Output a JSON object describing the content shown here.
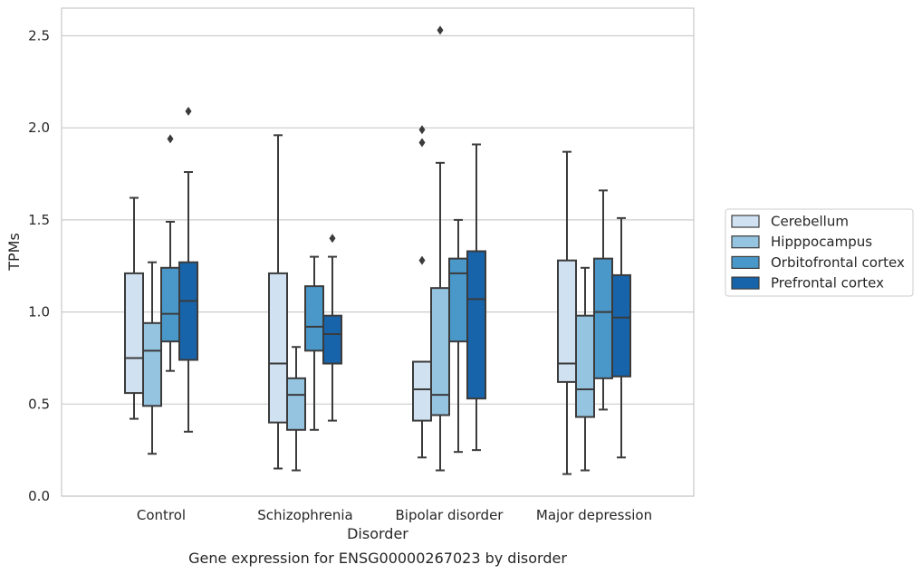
{
  "caption": "Gene expression for ENSG00000267023 by disorder",
  "chart_data": {
    "type": "box",
    "xlabel": "Disorder",
    "ylabel": "TPMs",
    "ylim": [
      0,
      2.65
    ],
    "yticks": [
      "0.0",
      "0.5",
      "1.0",
      "1.5",
      "2.0",
      "2.5"
    ],
    "grid": "horizontal",
    "legend_position": "right",
    "categories": [
      "Control",
      "Schizophrenia",
      "Bipolar disorder",
      "Major depression"
    ],
    "series": [
      {
        "name": "Cerebellum",
        "color": "#d0e1f2",
        "boxes": [
          {
            "whisker_low": 0.42,
            "q1": 0.56,
            "median": 0.75,
            "q3": 1.21,
            "whisker_high": 1.62,
            "outliers": []
          },
          {
            "whisker_low": 0.15,
            "q1": 0.4,
            "median": 0.72,
            "q3": 1.21,
            "whisker_high": 1.96,
            "outliers": []
          },
          {
            "whisker_low": 0.21,
            "q1": 0.41,
            "median": 0.58,
            "q3": 0.73,
            "whisker_high": 0.73,
            "outliers": [
              1.28,
              1.92,
              1.99
            ]
          },
          {
            "whisker_low": 0.12,
            "q1": 0.62,
            "median": 0.72,
            "q3": 1.28,
            "whisker_high": 1.87,
            "outliers": []
          }
        ]
      },
      {
        "name": "Hipppocampus",
        "color": "#94c4df",
        "boxes": [
          {
            "whisker_low": 0.23,
            "q1": 0.49,
            "median": 0.79,
            "q3": 0.94,
            "whisker_high": 1.27,
            "outliers": []
          },
          {
            "whisker_low": 0.14,
            "q1": 0.36,
            "median": 0.55,
            "q3": 0.64,
            "whisker_high": 0.81,
            "outliers": []
          },
          {
            "whisker_low": 0.14,
            "q1": 0.44,
            "median": 0.55,
            "q3": 1.13,
            "whisker_high": 1.81,
            "outliers": [
              2.53
            ]
          },
          {
            "whisker_low": 0.14,
            "q1": 0.43,
            "median": 0.58,
            "q3": 0.98,
            "whisker_high": 1.24,
            "outliers": []
          }
        ]
      },
      {
        "name": "Orbitofrontal cortex",
        "color": "#4a98c9",
        "boxes": [
          {
            "whisker_low": 0.68,
            "q1": 0.84,
            "median": 0.99,
            "q3": 1.24,
            "whisker_high": 1.49,
            "outliers": [
              1.94
            ]
          },
          {
            "whisker_low": 0.36,
            "q1": 0.79,
            "median": 0.92,
            "q3": 1.14,
            "whisker_high": 1.3,
            "outliers": []
          },
          {
            "whisker_low": 0.24,
            "q1": 0.84,
            "median": 1.21,
            "q3": 1.29,
            "whisker_high": 1.5,
            "outliers": []
          },
          {
            "whisker_low": 0.47,
            "q1": 0.64,
            "median": 1.0,
            "q3": 1.29,
            "whisker_high": 1.66,
            "outliers": []
          }
        ]
      },
      {
        "name": "Prefrontal cortex",
        "color": "#1764ab",
        "boxes": [
          {
            "whisker_low": 0.35,
            "q1": 0.74,
            "median": 1.06,
            "q3": 1.27,
            "whisker_high": 1.76,
            "outliers": [
              2.09
            ]
          },
          {
            "whisker_low": 0.41,
            "q1": 0.72,
            "median": 0.88,
            "q3": 0.98,
            "whisker_high": 1.3,
            "outliers": [
              1.4
            ]
          },
          {
            "whisker_low": 0.25,
            "q1": 0.53,
            "median": 1.07,
            "q3": 1.33,
            "whisker_high": 1.91,
            "outliers": []
          },
          {
            "whisker_low": 0.21,
            "q1": 0.65,
            "median": 0.97,
            "q3": 1.2,
            "whisker_high": 1.51,
            "outliers": []
          }
        ]
      }
    ]
  }
}
